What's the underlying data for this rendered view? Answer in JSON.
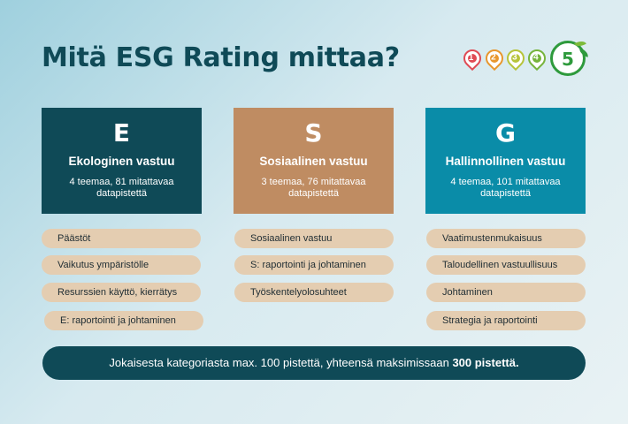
{
  "title": "Mitä ESG Rating mittaa?",
  "badges": [
    {
      "label": "1",
      "color": "#e04b55"
    },
    {
      "label": "2",
      "color": "#e8972e"
    },
    {
      "label": "3",
      "color": "#b7c43a"
    },
    {
      "label": "4",
      "color": "#77b43c"
    },
    {
      "label": "5",
      "color": "#2e9a3c"
    }
  ],
  "columns": [
    {
      "letter": "E",
      "name": "Ekologinen vastuu",
      "count": "4 teemaa, 81 mitattavaa datapistettä",
      "color": "#0f4a57",
      "items": [
        "Päästöt",
        "Vaikutus ympäristölle",
        "Resurssien käyttö, kierrätys",
        "E: raportointi ja johtaminen"
      ]
    },
    {
      "letter": "S",
      "name": "Sosiaalinen vastuu",
      "count": "3 teemaa, 76 mitattavaa datapistettä",
      "color": "#bf8c62",
      "items": [
        "Sosiaalinen vastuu",
        "S: raportointi ja johtaminen",
        "Työskentelyolosuhteet"
      ]
    },
    {
      "letter": "G",
      "name": "Hallinnollinen vastuu",
      "count": "4 teemaa, 101 mitattavaa datapistettä",
      "color": "#0a8ca8",
      "items": [
        "Vaatimustenmukaisuus",
        "Taloudellinen vastuullisuus",
        "Johtaminen",
        "Strategia ja raportointi"
      ]
    }
  ],
  "footer": {
    "text": "Jokaisesta kategoriasta max. 100 pistettä, yhteensä maksimissaan ",
    "bold": "300 pistettä."
  }
}
